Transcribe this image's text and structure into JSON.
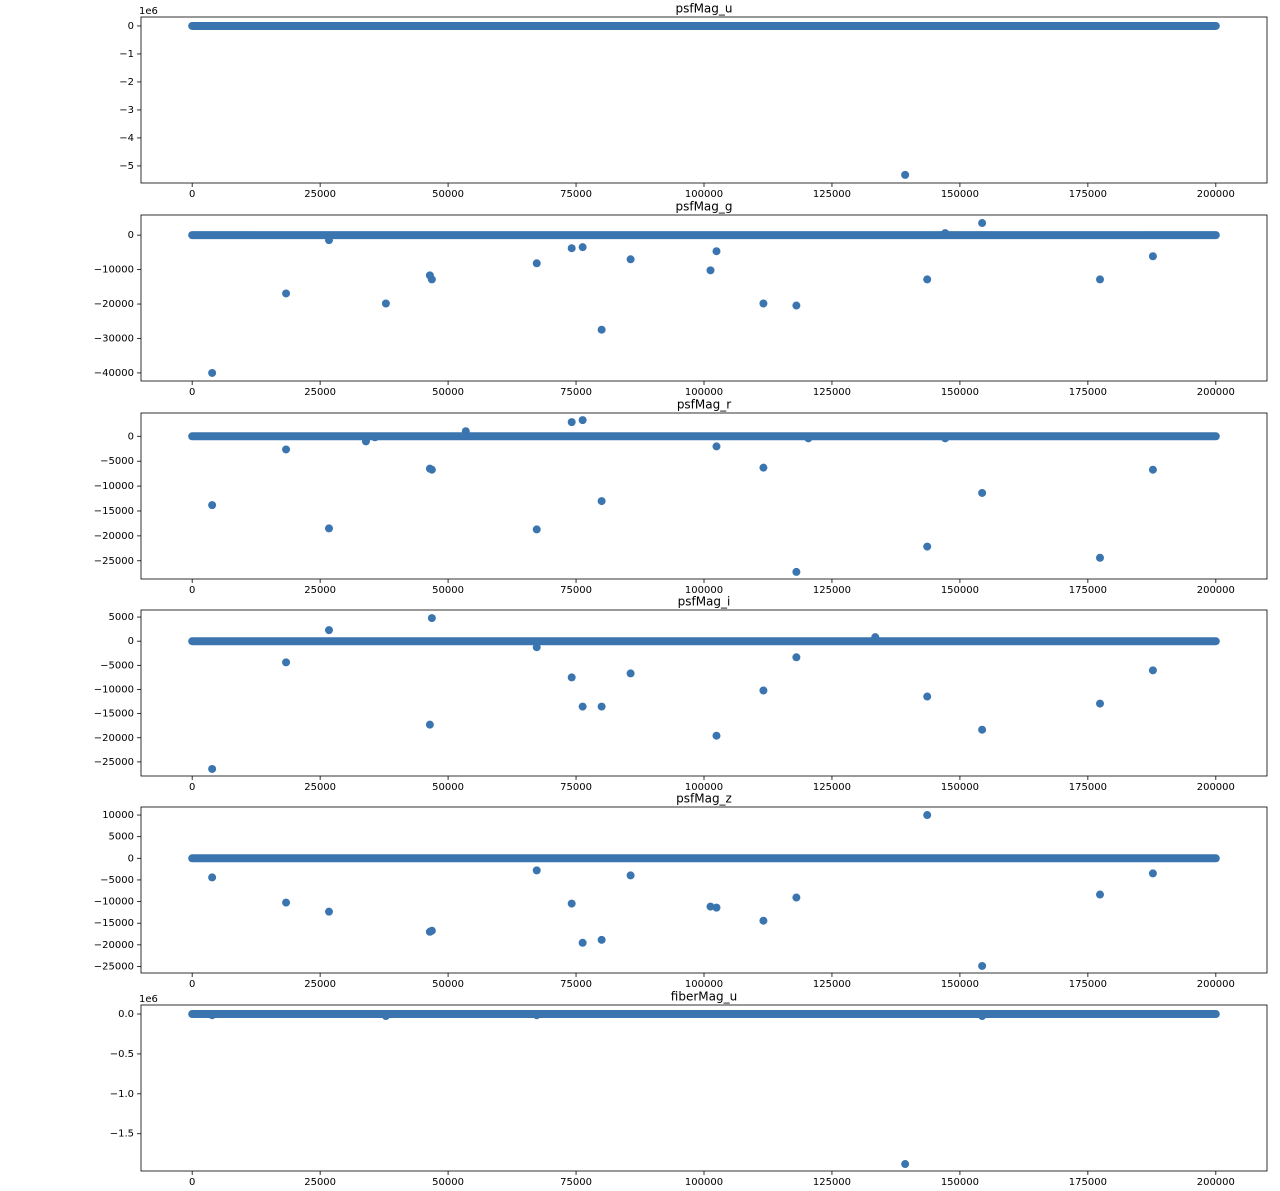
{
  "chart_data": [
    {
      "type": "scatter",
      "title": "psfMag_u",
      "offset_text": "1e6",
      "xlim": [
        -10000,
        210000
      ],
      "xticks": [
        0,
        25000,
        50000,
        75000,
        100000,
        125000,
        150000,
        175000,
        200000
      ],
      "ylim": [
        -5610000,
        320000
      ],
      "yticks": [
        0,
        {
          "value": -1000000,
          "label": "−1"
        },
        {
          "value": -2000000,
          "label": "−2"
        },
        {
          "value": -3000000,
          "label": "−3"
        },
        {
          "value": -4000000,
          "label": "−4"
        },
        {
          "value": -5000000,
          "label": "−5"
        }
      ],
      "series": [
        {
          "type": "line",
          "color": "#3b75af",
          "x": [
            0,
            200000
          ],
          "values": [
            0,
            0
          ]
        },
        {
          "color": "#3b75af",
          "x": [
            139300
          ],
          "values": [
            -5320000
          ]
        }
      ]
    },
    {
      "type": "scatter",
      "title": "psfMag_g",
      "xlim": [
        -10000,
        210000
      ],
      "xticks": [
        0,
        25000,
        50000,
        75000,
        100000,
        125000,
        150000,
        175000,
        200000
      ],
      "ylim": [
        -42340,
        5840
      ],
      "yticks": [
        0,
        {
          "value": -10000,
          "label": "−10000"
        },
        {
          "value": -20000,
          "label": "−20000"
        },
        {
          "value": -30000,
          "label": "−30000"
        },
        {
          "value": -40000,
          "label": "−40000"
        }
      ],
      "series": [
        {
          "type": "line",
          "color": "#3b75af",
          "x": [
            0,
            200000
          ],
          "values": [
            0,
            0
          ]
        },
        {
          "color": "#3b75af",
          "x": [
            3900,
            18340,
            26730,
            37850,
            46440,
            46830,
            67320,
            74150,
            76290,
            80000,
            85660,
            101270,
            102440,
            111610,
            118050,
            143610,
            154340,
            177370,
            187710,
            147120
          ],
          "values": [
            -40000,
            -16930,
            -1460,
            -19850,
            -11680,
            -12850,
            -8180,
            -3800,
            -3500,
            -27450,
            -7010,
            -10220,
            -4670,
            -19850,
            -20440,
            -12850,
            3500,
            -12850,
            -6130,
            580
          ]
        }
      ]
    },
    {
      "type": "scatter",
      "title": "psfMag_r",
      "xlim": [
        -10000,
        210000
      ],
      "xticks": [
        0,
        25000,
        50000,
        75000,
        100000,
        125000,
        150000,
        175000,
        200000
      ],
      "ylim": [
        -28660,
        4680
      ],
      "yticks": [
        0,
        {
          "value": -5000,
          "label": "−5000"
        },
        {
          "value": -10000,
          "label": "−10000"
        },
        {
          "value": -15000,
          "label": "−15000"
        },
        {
          "value": -20000,
          "label": "−20000"
        },
        {
          "value": -25000,
          "label": "−25000"
        }
      ],
      "series": [
        {
          "type": "line",
          "color": "#3b75af",
          "x": [
            0,
            200000
          ],
          "values": [
            0,
            0
          ]
        },
        {
          "color": "#3b75af",
          "x": [
            3900,
            18340,
            26730,
            33950,
            35710,
            46440,
            46830,
            53460,
            67320,
            74150,
            76290,
            80000,
            102440,
            111610,
            120390,
            147120,
            154340,
            143610,
            177370,
            118050,
            187710
          ],
          "values": [
            -13820,
            -2640,
            -18500,
            -1020,
            -200,
            -6500,
            -6710,
            1020,
            -18700,
            2850,
            3250,
            -13010,
            -2030,
            -6300,
            -410,
            -410,
            -11380,
            -22150,
            -24390,
            -27240,
            -6710
          ]
        }
      ]
    },
    {
      "type": "scatter",
      "title": "psfMag_i",
      "xlim": [
        -10000,
        210000
      ],
      "xticks": [
        0,
        25000,
        50000,
        75000,
        100000,
        125000,
        150000,
        175000,
        200000
      ],
      "ylim": [
        -27920,
        6460
      ],
      "yticks": [
        5000,
        0,
        {
          "value": -5000,
          "label": "−5000"
        },
        {
          "value": -10000,
          "label": "−10000"
        },
        {
          "value": -15000,
          "label": "−15000"
        },
        {
          "value": -20000,
          "label": "−20000"
        },
        {
          "value": -25000,
          "label": "−25000"
        }
      ],
      "series": [
        {
          "type": "line",
          "color": "#3b75af",
          "x": [
            0,
            200000
          ],
          "values": [
            0,
            0
          ]
        },
        {
          "color": "#3b75af",
          "x": [
            3900,
            18340,
            26730,
            46440,
            46830,
            67320,
            74150,
            76290,
            80000,
            85660,
            102440,
            111610,
            118050,
            133460,
            143610,
            154340,
            177370,
            187710
          ],
          "values": [
            -26460,
            -4380,
            2290,
            -17290,
            4790,
            -1250,
            -7500,
            -13540,
            -13540,
            -6670,
            -19580,
            -10210,
            -3330,
            830,
            -11460,
            -18330,
            -12920,
            -6040
          ]
        }
      ]
    },
    {
      "type": "scatter",
      "title": "psfMag_z",
      "xlim": [
        -10000,
        210000
      ],
      "xticks": [
        0,
        25000,
        50000,
        75000,
        100000,
        125000,
        150000,
        175000,
        200000
      ],
      "ylim": [
        -26510,
        11860
      ],
      "yticks": [
        10000,
        5000,
        0,
        {
          "value": -5000,
          "label": "−5000"
        },
        {
          "value": -10000,
          "label": "−10000"
        },
        {
          "value": -15000,
          "label": "−15000"
        },
        {
          "value": -20000,
          "label": "−20000"
        },
        {
          "value": -25000,
          "label": "−25000"
        }
      ],
      "series": [
        {
          "type": "line",
          "color": "#3b75af",
          "x": [
            0,
            200000
          ],
          "values": [
            0,
            0
          ]
        },
        {
          "color": "#3b75af",
          "x": [
            3900,
            18340,
            26730,
            46440,
            46830,
            67320,
            74150,
            76290,
            80000,
            85660,
            101270,
            102440,
            111610,
            118050,
            143610,
            154340,
            177370,
            187710
          ],
          "values": [
            -4420,
            -10230,
            -12330,
            -16980,
            -16740,
            -2790,
            -10470,
            -19530,
            -18840,
            -3950,
            -11160,
            -11400,
            -14420,
            -9070,
            10000,
            -24880,
            -8370,
            -3490
          ]
        }
      ]
    },
    {
      "type": "scatter",
      "title": "fiberMag_u",
      "offset_text": "1e6",
      "xlim": [
        -10000,
        210000
      ],
      "xticks": [
        0,
        25000,
        50000,
        75000,
        100000,
        125000,
        150000,
        175000,
        200000
      ],
      "ylim": [
        -1967000,
        113000
      ],
      "yticks": [
        {
          "value": 0,
          "label": "0.0"
        },
        {
          "value": -500000,
          "label": "−0.5"
        },
        {
          "value": -1000000,
          "label": "−1.0"
        },
        {
          "value": -1500000,
          "label": "−1.5"
        }
      ],
      "series": [
        {
          "type": "line",
          "color": "#3b75af",
          "x": [
            0,
            200000
          ],
          "values": [
            0,
            0
          ]
        },
        {
          "color": "#3b75af",
          "x": [
            139300,
            3900,
            37850,
            67320,
            154340
          ],
          "values": [
            -1880000,
            -15000,
            -25000,
            -15000,
            -25000
          ]
        }
      ]
    }
  ]
}
